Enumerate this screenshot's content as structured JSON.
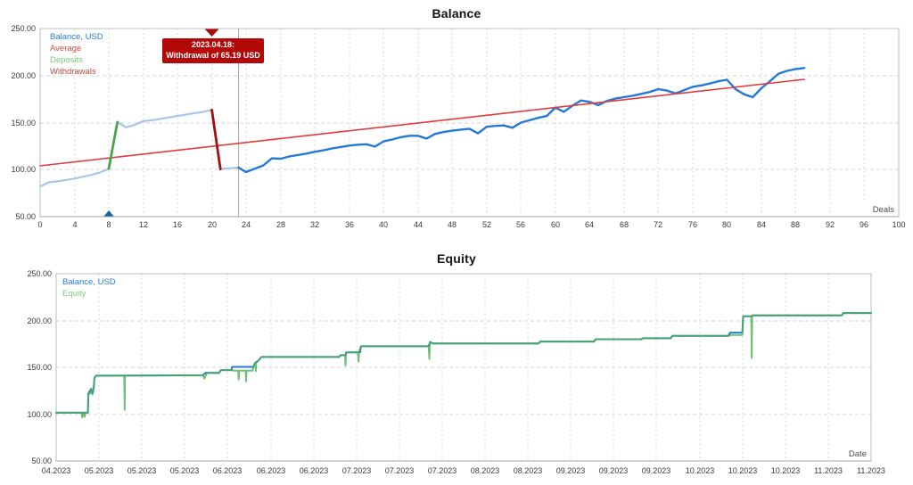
{
  "chart_data": [
    {
      "type": "line",
      "title": "Balance",
      "corner_label": "Deals",
      "xlabel": "Deals",
      "ylabel": "",
      "ylim": [
        50,
        250
      ],
      "xlim": [
        0,
        100
      ],
      "grid": "dashed",
      "legend_position": "top-left",
      "y_ticks": [
        "250.00",
        "200.00",
        "150.00",
        "100.00",
        "50.00"
      ],
      "x_ticks": [
        "0",
        "4",
        "8",
        "12",
        "16",
        "20",
        "24",
        "28",
        "32",
        "36",
        "40",
        "44",
        "48",
        "52",
        "56",
        "60",
        "64",
        "68",
        "72",
        "76",
        "80",
        "84",
        "88",
        "92",
        "96",
        "100"
      ],
      "legend": [
        {
          "label": "Balance, USD",
          "color": "#2b7bd4"
        },
        {
          "label": "Average",
          "color": "#e04545"
        },
        {
          "label": "Deposits",
          "color": "#7cc47c"
        },
        {
          "label": "Withdrawals",
          "color": "#bc4a42"
        }
      ],
      "tooltip": {
        "line1": "2023.04.18:",
        "line2": "Withdrawal of 65.19 USD",
        "bg_color": "#b20808",
        "text_color": "#ffffff",
        "x_deal": 20
      },
      "markers": {
        "deposit_deal": 8,
        "deposit_color": "#1f5f9e",
        "withdrawal_deal": 20,
        "withdrawal_color": "#a50d0d",
        "cursor_deal": 23.1
      },
      "series": [
        {
          "name": "balance-history",
          "color": "#a8c6e8",
          "width": 2.2,
          "points": [
            [
              0,
              82
            ],
            [
              1,
              86.5
            ],
            [
              2,
              87.5
            ],
            [
              3,
              89
            ],
            [
              4,
              90.5
            ],
            [
              5,
              92.5
            ],
            [
              6,
              94.5
            ],
            [
              7,
              97
            ],
            [
              8,
              101
            ],
            [
              9,
              150.5
            ],
            [
              10,
              145
            ],
            [
              11,
              147.5
            ],
            [
              12,
              151.5
            ],
            [
              13,
              152.5
            ],
            [
              14,
              154
            ],
            [
              15,
              155.5
            ],
            [
              16,
              157
            ],
            [
              17,
              158.5
            ],
            [
              18,
              160
            ],
            [
              19,
              161.5
            ],
            [
              20,
              163.5
            ],
            [
              21,
              100.5
            ],
            [
              22,
              101.5
            ],
            [
              23.1,
              102
            ]
          ]
        },
        {
          "name": "balance",
          "color": "#2478d8",
          "width": 2.4,
          "points": [
            [
              23.1,
              102
            ],
            [
              24,
              97.5
            ],
            [
              25,
              101
            ],
            [
              26,
              104.5
            ],
            [
              27,
              112
            ],
            [
              28,
              111.5
            ],
            [
              29,
              114
            ],
            [
              30,
              115.5
            ],
            [
              31,
              117
            ],
            [
              32,
              119
            ],
            [
              33,
              120.5
            ],
            [
              34,
              122.5
            ],
            [
              35,
              124
            ],
            [
              36,
              125.5
            ],
            [
              37,
              126.5
            ],
            [
              38,
              127
            ],
            [
              39,
              124.5
            ],
            [
              40,
              130
            ],
            [
              41,
              132
            ],
            [
              42,
              134.5
            ],
            [
              43,
              136
            ],
            [
              44,
              136
            ],
            [
              45,
              133
            ],
            [
              46,
              138
            ],
            [
              47,
              140
            ],
            [
              48,
              141.5
            ],
            [
              49,
              142.5
            ],
            [
              50,
              143.5
            ],
            [
              51,
              138.5
            ],
            [
              52,
              145.5
            ],
            [
              53,
              146.5
            ],
            [
              54,
              147
            ],
            [
              55,
              144.5
            ],
            [
              56,
              150
            ],
            [
              57,
              152.5
            ],
            [
              58,
              155
            ],
            [
              59,
              157
            ],
            [
              60,
              166
            ],
            [
              61,
              161.5
            ],
            [
              62,
              168
            ],
            [
              63,
              173.5
            ],
            [
              64,
              172
            ],
            [
              65,
              168.5
            ],
            [
              66,
              173
            ],
            [
              67,
              175.5
            ],
            [
              68,
              177
            ],
            [
              69,
              178.5
            ],
            [
              70,
              180.5
            ],
            [
              71,
              182.5
            ],
            [
              72,
              185.5
            ],
            [
              73,
              184
            ],
            [
              74,
              181
            ],
            [
              75,
              184.5
            ],
            [
              76,
              188
            ],
            [
              77,
              189.5
            ],
            [
              78,
              191.5
            ],
            [
              79,
              194
            ],
            [
              80,
              195.5
            ],
            [
              81,
              185.5
            ],
            [
              82,
              180
            ],
            [
              83,
              177
            ],
            [
              84,
              186.5
            ],
            [
              85,
              194
            ],
            [
              86,
              202
            ],
            [
              87,
              205
            ],
            [
              88,
              207
            ],
            [
              89,
              208
            ]
          ]
        },
        {
          "name": "average",
          "color": "#e23b3b",
          "width": 1.6,
          "points": [
            [
              0,
              104
            ],
            [
              89,
              196
            ]
          ]
        },
        {
          "name": "deposit",
          "color": "#4ba34b",
          "width": 2.8,
          "points": [
            [
              8,
              101
            ],
            [
              9,
              150.5
            ]
          ]
        },
        {
          "name": "withdrawal",
          "color": "#a01010",
          "width": 2.8,
          "points": [
            [
              20,
              163.5
            ],
            [
              21,
              100.5
            ]
          ]
        }
      ]
    },
    {
      "type": "line",
      "title": "Equity",
      "corner_label": "Date",
      "xlabel": "Date",
      "ylabel": "",
      "ylim": [
        50,
        250
      ],
      "xlim": [
        0,
        1
      ],
      "grid": "dashed",
      "legend_position": "top-left",
      "y_ticks": [
        "250.00",
        "200.00",
        "150.00",
        "100.00",
        "50.00"
      ],
      "x_ticks": [
        "04.2023",
        "05.2023",
        "05.2023",
        "05.2023",
        "06.2023",
        "06.2023",
        "06.2023",
        "07.2023",
        "07.2023",
        "07.2023",
        "08.2023",
        "08.2023",
        "09.2023",
        "09.2023",
        "09.2023",
        "10.2023",
        "10.2023",
        "10.2023",
        "11.2023",
        "11.2023"
      ],
      "legend": [
        {
          "label": "Balance, USD",
          "color": "#2b7bd4"
        },
        {
          "label": "Equity",
          "color": "#84c784"
        }
      ],
      "series": [
        {
          "name": "balance",
          "color": "#2478d8",
          "width": 2,
          "points": [
            [
              0,
              101.5
            ],
            [
              0.039,
              101.5
            ],
            [
              0.0395,
              122
            ],
            [
              0.043,
              127
            ],
            [
              0.0445,
              122
            ],
            [
              0.046,
              127
            ],
            [
              0.047,
              139
            ],
            [
              0.049,
              141
            ],
            [
              0.18,
              141.5
            ],
            [
              0.183,
              144
            ],
            [
              0.2,
              144
            ],
            [
              0.202,
              147
            ],
            [
              0.215,
              147
            ],
            [
              0.216,
              150.5
            ],
            [
              0.242,
              150.5
            ],
            [
              0.243,
              153
            ],
            [
              0.2445,
              155
            ],
            [
              0.248,
              157
            ],
            [
              0.252,
              161
            ],
            [
              0.347,
              161
            ],
            [
              0.349,
              163
            ],
            [
              0.355,
              163
            ],
            [
              0.356,
              166
            ],
            [
              0.373,
              166
            ],
            [
              0.374,
              172.5
            ],
            [
              0.457,
              172.5
            ],
            [
              0.459,
              177
            ],
            [
              0.462,
              175.5
            ],
            [
              0.592,
              175.5
            ],
            [
              0.594,
              177.5
            ],
            [
              0.66,
              177.5
            ],
            [
              0.662,
              180
            ],
            [
              0.718,
              180
            ],
            [
              0.72,
              181
            ],
            [
              0.754,
              181
            ],
            [
              0.756,
              183.5
            ],
            [
              0.825,
              183.5
            ],
            [
              0.827,
              187
            ],
            [
              0.842,
              187
            ],
            [
              0.843,
              204.5
            ],
            [
              0.853,
              204.5
            ],
            [
              0.855,
              205.5
            ],
            [
              0.964,
              205.5
            ],
            [
              0.966,
              208
            ],
            [
              1,
              208
            ]
          ]
        },
        {
          "name": "equity",
          "color": "#4fae54",
          "width": 2,
          "opacity": 0.8,
          "points": [
            [
              0,
              101.5
            ],
            [
              0.031,
              101.5
            ],
            [
              0.032,
              96.5
            ],
            [
              0.033,
              101.5
            ],
            [
              0.035,
              97
            ],
            [
              0.036,
              101.5
            ],
            [
              0.039,
              101.5
            ],
            [
              0.0395,
              122
            ],
            [
              0.042,
              122
            ],
            [
              0.043,
              127
            ],
            [
              0.0445,
              121
            ],
            [
              0.046,
              127
            ],
            [
              0.047,
              139
            ],
            [
              0.049,
              141
            ],
            [
              0.0835,
              141
            ],
            [
              0.084,
              104.5
            ],
            [
              0.0845,
              141
            ],
            [
              0.18,
              141.5
            ],
            [
              0.182,
              138
            ],
            [
              0.185,
              144
            ],
            [
              0.2,
              144
            ],
            [
              0.202,
              147
            ],
            [
              0.215,
              147
            ],
            [
              0.218,
              146.5
            ],
            [
              0.2235,
              146.5
            ],
            [
              0.224,
              137
            ],
            [
              0.2245,
              146.5
            ],
            [
              0.2325,
              146.5
            ],
            [
              0.233,
              135
            ],
            [
              0.2335,
              146.5
            ],
            [
              0.241,
              146.5
            ],
            [
              0.243,
              153
            ],
            [
              0.2445,
              155
            ],
            [
              0.245,
              146
            ],
            [
              0.2455,
              155
            ],
            [
              0.248,
              157
            ],
            [
              0.252,
              161
            ],
            [
              0.347,
              161
            ],
            [
              0.349,
              163
            ],
            [
              0.3545,
              163
            ],
            [
              0.355,
              152
            ],
            [
              0.3555,
              163
            ],
            [
              0.356,
              166
            ],
            [
              0.3705,
              166
            ],
            [
              0.371,
              156
            ],
            [
              0.3715,
              166
            ],
            [
              0.374,
              172.5
            ],
            [
              0.457,
              172.5
            ],
            [
              0.458,
              159
            ],
            [
              0.4585,
              177
            ],
            [
              0.462,
              175.5
            ],
            [
              0.592,
              175.5
            ],
            [
              0.594,
              177.5
            ],
            [
              0.66,
              177.5
            ],
            [
              0.662,
              180
            ],
            [
              0.718,
              180
            ],
            [
              0.72,
              181
            ],
            [
              0.754,
              181
            ],
            [
              0.756,
              183.5
            ],
            [
              0.825,
              183.5
            ],
            [
              0.828,
              184.5
            ],
            [
              0.842,
              184.5
            ],
            [
              0.843,
              204.5
            ],
            [
              0.853,
              204.5
            ],
            [
              0.8535,
              160
            ],
            [
              0.854,
              205.5
            ],
            [
              0.964,
              205.5
            ],
            [
              0.966,
              208
            ],
            [
              1,
              208
            ]
          ]
        }
      ]
    }
  ]
}
